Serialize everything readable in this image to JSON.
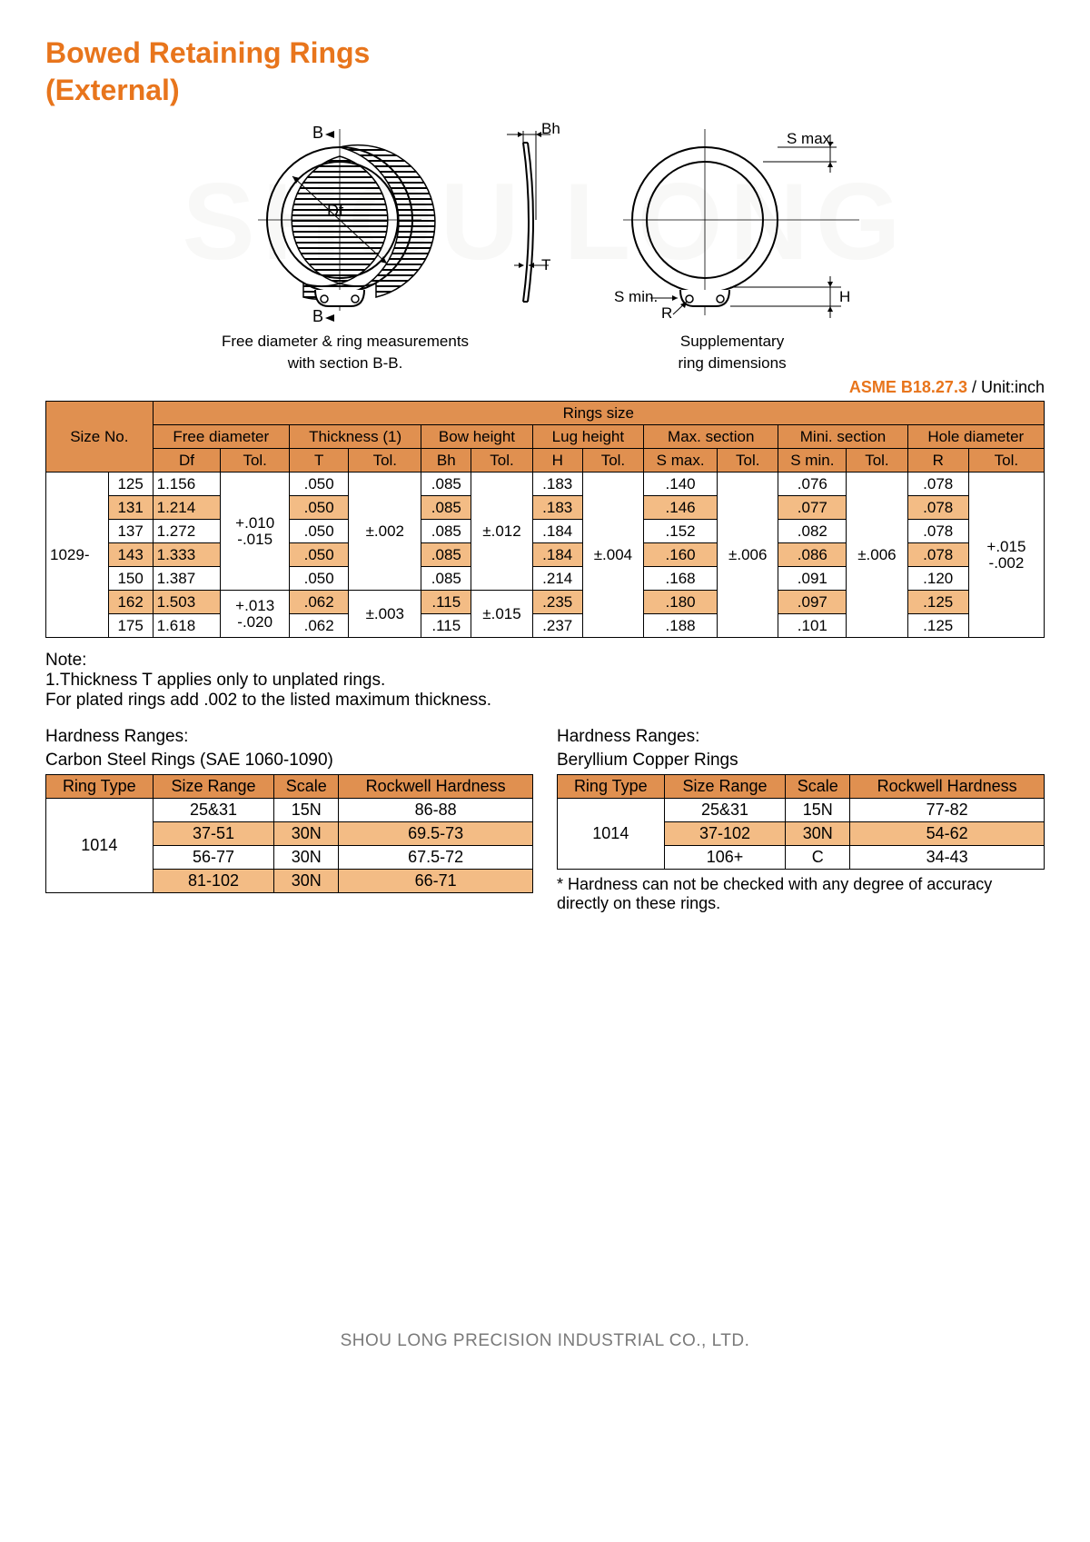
{
  "title1": "Bowed Retaining Rings",
  "title2": "(External)",
  "watermark": "SHOU LONG",
  "diagram1_caption1": "Free diameter & ring measurements",
  "diagram1_caption2": "with section B-B.",
  "diagram2_caption1": "Supplementary",
  "diagram2_caption2": "ring dimensions",
  "diag_labels": {
    "B1": "B",
    "B2": "B",
    "Df": "Df",
    "Bh": "Bh",
    "T": "T",
    "Smax": "S max.",
    "Smin": "S min.",
    "R": "R",
    "H": "H"
  },
  "std_code": "ASME B18.27.3",
  "std_unit": " / Unit:inch",
  "main": {
    "head_size": "Size No.",
    "head_rings": "Rings size",
    "groups": [
      "Free diameter",
      "Thickness (1)",
      "Bow height",
      "Lug height",
      "Max. section",
      "Mini. section",
      "Hole diameter"
    ],
    "subs": [
      "Df",
      "Tol.",
      "T",
      "Tol.",
      "Bh",
      "Tol.",
      "H",
      "Tol.",
      "S max.",
      "Tol.",
      "S min.",
      "Tol.",
      "R",
      "Tol."
    ],
    "series": "1029-",
    "rows": [
      {
        "size": "125",
        "df": "1.156",
        "t": ".050",
        "bh": ".085",
        "h": ".183",
        "smax": ".140",
        "smin": ".076",
        "r": ".078"
      },
      {
        "size": "131",
        "df": "1.214",
        "t": ".050",
        "bh": ".085",
        "h": ".183",
        "smax": ".146",
        "smin": ".077",
        "r": ".078"
      },
      {
        "size": "137",
        "df": "1.272",
        "t": ".050",
        "bh": ".085",
        "h": ".184",
        "smax": ".152",
        "smin": ".082",
        "r": ".078"
      },
      {
        "size": "143",
        "df": "1.333",
        "t": ".050",
        "bh": ".085",
        "h": ".184",
        "smax": ".160",
        "smin": ".086",
        "r": ".078"
      },
      {
        "size": "150",
        "df": "1.387",
        "t": ".050",
        "bh": ".085",
        "h": ".214",
        "smax": ".168",
        "smin": ".091",
        "r": ".120"
      },
      {
        "size": "162",
        "df": "1.503",
        "t": ".062",
        "bh": ".115",
        "h": ".235",
        "smax": ".180",
        "smin": ".097",
        "r": ".125"
      },
      {
        "size": "175",
        "df": "1.618",
        "t": ".062",
        "bh": ".115",
        "h": ".237",
        "smax": ".188",
        "smin": ".101",
        "r": ".125"
      }
    ],
    "tol": {
      "df1": "+.010\n-.015",
      "df2": "+.013\n-.020",
      "t1": "±.002",
      "t2": "±.003",
      "bh1": "±.012",
      "bh2": "±.015",
      "h": "±.004",
      "smax": "±.006",
      "smin": "±.006",
      "r": "+.015\n-.002"
    }
  },
  "note_head": "Note:",
  "note1": "1.Thickness T applies only to unplated rings.",
  "note2": "For plated rings add .002 to the listed maximum thickness.",
  "hardness_label": "Hardness Ranges:",
  "carbon_title": "Carbon Steel Rings (SAE 1060-1090)",
  "copper_title": "Beryllium Copper Rings",
  "hardness_head": [
    "Ring Type",
    "Size Range",
    "Scale",
    "Rockwell Hardness"
  ],
  "carbon_rt": "1014",
  "carbon_rows": [
    {
      "range": "25&31",
      "scale": "15N",
      "rh": "86-88"
    },
    {
      "range": "37-51",
      "scale": "30N",
      "rh": "69.5-73"
    },
    {
      "range": "56-77",
      "scale": "30N",
      "rh": "67.5-72"
    },
    {
      "range": "81-102",
      "scale": "30N",
      "rh": "66-71"
    }
  ],
  "copper_rt": "1014",
  "copper_rows": [
    {
      "range": "25&31",
      "scale": "15N",
      "rh": "77-82"
    },
    {
      "range": "37-102",
      "scale": "30N",
      "rh": "54-62"
    },
    {
      "range": "106+",
      "scale": "C",
      "rh": "34-43"
    }
  ],
  "copper_footnote": "* Hardness can not be checked with any degree of accuracy directly on these rings.",
  "footer": "SHOU LONG PRECISION INDUSTRIAL CO., LTD.",
  "colors": {
    "dark_bg": "#e09050",
    "light_bg": "#f3bc85",
    "title": "#e8751c"
  }
}
